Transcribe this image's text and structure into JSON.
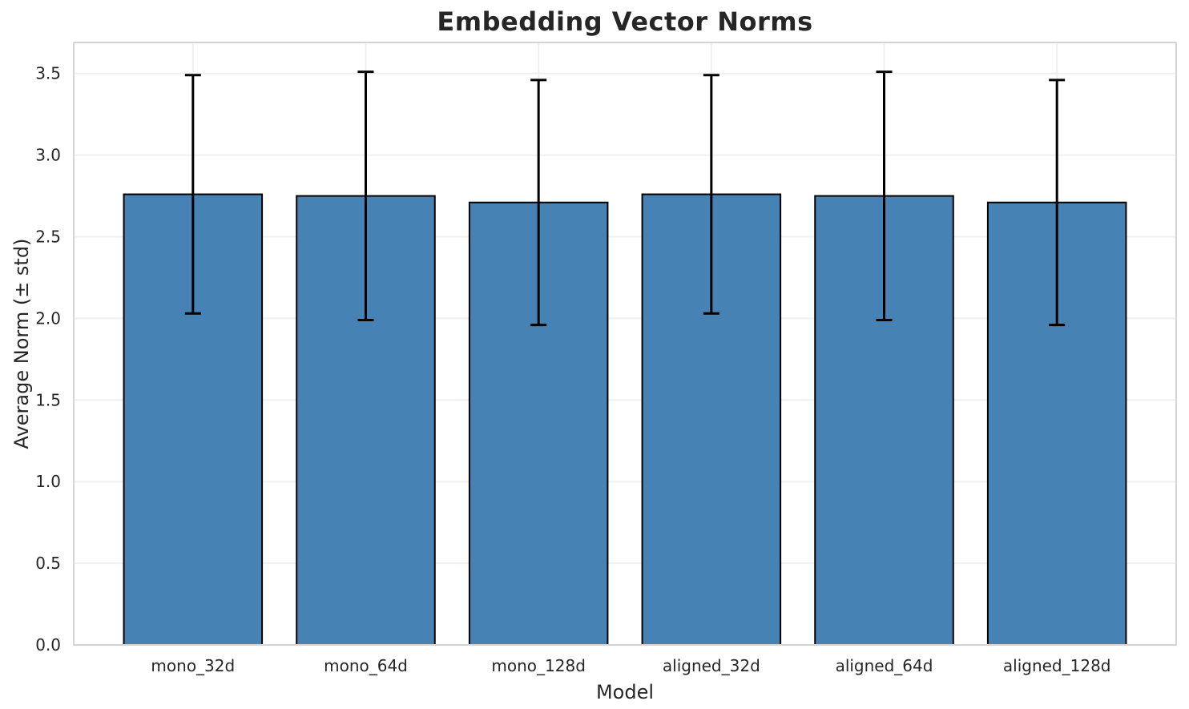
{
  "chart_data": {
    "type": "bar",
    "title": "Embedding Vector Norms",
    "xlabel": "Model",
    "ylabel": "Average Norm (± std)",
    "categories": [
      "mono_32d",
      "mono_64d",
      "mono_128d",
      "aligned_32d",
      "aligned_64d",
      "aligned_128d"
    ],
    "series": [
      {
        "name": "Average Norm (± std)",
        "values": [
          2.76,
          2.75,
          2.71,
          2.76,
          2.75,
          2.71
        ],
        "errors": [
          0.73,
          0.76,
          0.75,
          0.73,
          0.76,
          0.75
        ]
      }
    ],
    "yticks": [
      0.0,
      0.5,
      1.0,
      1.5,
      2.0,
      2.5,
      3.0,
      3.5
    ],
    "ytick_labels": [
      "0.0",
      "0.5",
      "1.0",
      "1.5",
      "2.0",
      "2.5",
      "3.0",
      "3.5"
    ],
    "ylim": [
      0,
      3.69
    ],
    "grid": true,
    "legend": false,
    "error_cap_size": 20,
    "colors": {
      "bar_fill": "#4682B4",
      "bar_edge": "#000000",
      "error_bar": "#000000",
      "grid_line": "#f0f0f0",
      "spine": "#d4d4d4",
      "text": "#262626",
      "title": "#262626"
    }
  }
}
